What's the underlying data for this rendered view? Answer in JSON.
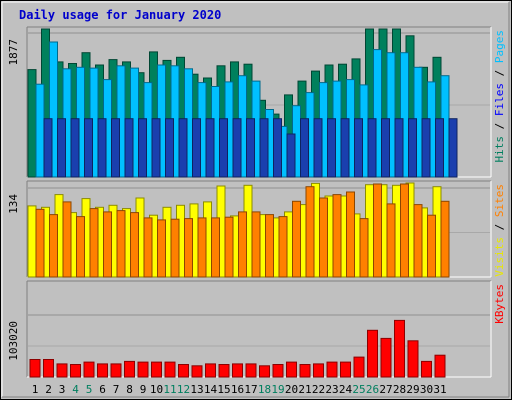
{
  "chart_data": [
    {
      "type": "bar",
      "title": "Daily usage for January 2020",
      "categories": [
        "1",
        "2",
        "3",
        "4",
        "5",
        "6",
        "7",
        "8",
        "9",
        "10",
        "11",
        "12",
        "13",
        "14",
        "15",
        "16",
        "17",
        "18",
        "19",
        "20",
        "21",
        "22",
        "23",
        "24",
        "25",
        "26",
        "27",
        "28",
        "29",
        "30",
        "31"
      ],
      "weekend_days": [
        "4",
        "5",
        "11",
        "12",
        "18",
        "19",
        "25",
        "26"
      ],
      "ytick": "1877",
      "ymax": 1877,
      "legend": [
        {
          "label": "Pages",
          "color": "#00c0ff"
        },
        {
          "label": "Files",
          "color": "#0000ff"
        },
        {
          "label": "Hits",
          "color": "#007f5f"
        }
      ],
      "series": [
        {
          "name": "Hits",
          "color": "#00805c",
          "values": [
            1400,
            1930,
            1500,
            1480,
            1620,
            1460,
            1530,
            1500,
            1360,
            1630,
            1520,
            1560,
            1340,
            1290,
            1450,
            1500,
            1470,
            1000,
            820,
            1070,
            1250,
            1380,
            1460,
            1470,
            1540,
            1930,
            1950,
            2060,
            1840,
            1430,
            1560
          ]
        },
        {
          "name": "Files",
          "color": "#00c0ff",
          "values": [
            1210,
            1760,
            1410,
            1430,
            1420,
            1270,
            1450,
            1420,
            1230,
            1460,
            1450,
            1410,
            1230,
            1180,
            1240,
            1320,
            1250,
            880,
            660,
            930,
            1100,
            1230,
            1250,
            1270,
            1200,
            1660,
            1620,
            1620,
            1430,
            1240,
            1320
          ]
        },
        {
          "name": "Pages",
          "color": "#1a3fae",
          "values": [
            760,
            760,
            760,
            760,
            760,
            760,
            760,
            760,
            760,
            760,
            760,
            760,
            760,
            760,
            760,
            760,
            760,
            760,
            560,
            760,
            760,
            760,
            760,
            760,
            760,
            760,
            760,
            760,
            760,
            760,
            760
          ]
        }
      ]
    },
    {
      "type": "bar",
      "categories": [
        "1",
        "2",
        "3",
        "4",
        "5",
        "6",
        "7",
        "8",
        "9",
        "10",
        "11",
        "12",
        "13",
        "14",
        "15",
        "16",
        "17",
        "18",
        "19",
        "20",
        "21",
        "22",
        "23",
        "24",
        "25",
        "26",
        "27",
        "28",
        "29",
        "30",
        "31"
      ],
      "ytick": "134",
      "ymax": 134,
      "legend": [
        {
          "label": "Sites",
          "color": "#ff8000"
        },
        {
          "label": "Visits",
          "color": "#e8e800"
        }
      ],
      "series": [
        {
          "name": "Visits",
          "color": "#ffff00",
          "values": [
            107,
            105,
            124,
            97,
            118,
            105,
            108,
            103,
            119,
            93,
            105,
            108,
            110,
            113,
            137,
            92,
            138,
            94,
            89,
            98,
            109,
            141,
            122,
            122,
            95,
            139,
            139,
            138,
            143,
            104,
            136
          ]
        },
        {
          "name": "Sites",
          "color": "#ff8000",
          "values": [
            102,
            94,
            113,
            91,
            103,
            98,
            100,
            97,
            89,
            86,
            87,
            88,
            89,
            89,
            90,
            98,
            98,
            94,
            91,
            114,
            136,
            119,
            124,
            128,
            88,
            140,
            110,
            140,
            109,
            93,
            114
          ]
        }
      ]
    },
    {
      "type": "bar",
      "categories": [
        "1",
        "2",
        "3",
        "4",
        "5",
        "6",
        "7",
        "8",
        "9",
        "10",
        "11",
        "12",
        "13",
        "14",
        "15",
        "16",
        "17",
        "18",
        "19",
        "20",
        "21",
        "22",
        "23",
        "24",
        "25",
        "26",
        "27",
        "28",
        "29",
        "30",
        "31"
      ],
      "ytick": "103020",
      "ymax": 103020,
      "legend": [
        {
          "label": "KBytes",
          "color": "#ff0000"
        }
      ],
      "series": [
        {
          "name": "KBytes",
          "color": "#ff0000",
          "values": [
            29000,
            29000,
            21800,
            20700,
            24800,
            21800,
            21800,
            25900,
            24800,
            24800,
            24800,
            20700,
            18600,
            21800,
            20700,
            21800,
            21800,
            18600,
            20700,
            24800,
            20700,
            21800,
            24800,
            24800,
            33100,
            77600,
            64200,
            94100,
            60100,
            25900,
            36200
          ]
        }
      ]
    }
  ]
}
